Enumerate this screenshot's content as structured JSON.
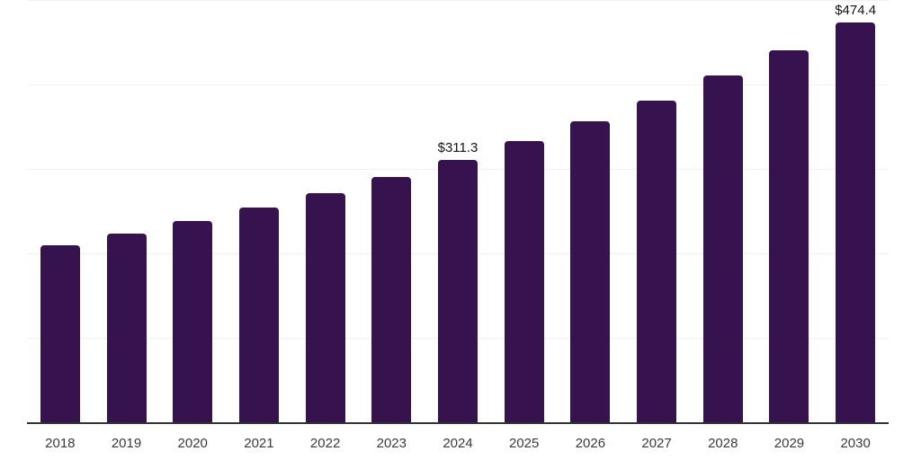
{
  "chart_data": {
    "type": "bar",
    "title": "",
    "xlabel": "",
    "ylabel": "",
    "categories": [
      "2018",
      "2019",
      "2020",
      "2021",
      "2022",
      "2023",
      "2024",
      "2025",
      "2026",
      "2027",
      "2028",
      "2029",
      "2030"
    ],
    "values": [
      210.5,
      224.5,
      239.5,
      255.3,
      272.3,
      291.2,
      311.3,
      333.7,
      357.8,
      381.6,
      411.7,
      441.5,
      474.4
    ],
    "point_labels": [
      "",
      "",
      "",
      "",
      "",
      "",
      "$311.3",
      "",
      "",
      "",
      "",
      "",
      "$474.4"
    ],
    "ylim": [
      0,
      500
    ],
    "gridlines": [
      0,
      100,
      200,
      300,
      400,
      500
    ],
    "grid": "horizontal-only",
    "legend": "none",
    "y_axis_labels_visible": false
  },
  "style": {
    "bar_color": "#36124E",
    "grid_color": "#F1F1F1",
    "axis_color": "#333333",
    "tick_label_color": "#3A3A3A",
    "value_label_color": "#141414",
    "background": "#FFFFFF"
  }
}
